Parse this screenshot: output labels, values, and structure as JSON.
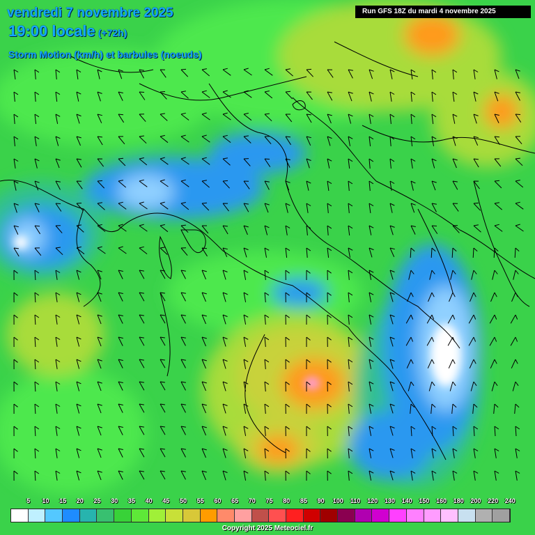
{
  "header": {
    "date_line": "vendredi 7 novembre 2025",
    "time_line": "19:00 locale",
    "lead_time": "(+72h)",
    "parameter": "Storm Motion (km/h) et barbules (noeuds)",
    "run_label": "Run GFS 18Z du mardi 4 novembre 2025"
  },
  "legend": {
    "labels": [
      "5",
      "10",
      "15",
      "20",
      "25",
      "30",
      "35",
      "40",
      "45",
      "50",
      "55",
      "60",
      "65",
      "70",
      "75",
      "80",
      "85",
      "90",
      "100",
      "110",
      "120",
      "130",
      "140",
      "150",
      "160",
      "180",
      "200",
      "220",
      "240"
    ],
    "colors": [
      "#ffffff",
      "#bff0ff",
      "#54c8ff",
      "#1e8cff",
      "#27b4ae",
      "#38c070",
      "#38d238",
      "#5ee838",
      "#a0f038",
      "#c8e038",
      "#d8c838",
      "#ff9c00",
      "#ff8a6a",
      "#ffa0a0",
      "#c0504a",
      "#ff5050",
      "#ff2020",
      "#d00000",
      "#a00000",
      "#8a0050",
      "#b000b0",
      "#d000d0",
      "#ff40ff",
      "#ff80ff",
      "#ff9cff",
      "#ffc0ff",
      "#c8e0f0",
      "#b0b0b0",
      "#a0a0a0"
    ]
  },
  "map": {
    "palette": {
      "land_green": "#3ad24a",
      "bright_green": "#4ee84e",
      "yellow_green": "#a8dc3a",
      "olive": "#c8d23a",
      "orange": "#ff9a1e",
      "blue": "#2a98f0",
      "light_blue": "#90d0ff",
      "white": "#ffffff",
      "teal": "#30c090",
      "borders": "#000000"
    }
  },
  "footer": {
    "copyright": "Copyright 2025 Meteociel.fr"
  }
}
